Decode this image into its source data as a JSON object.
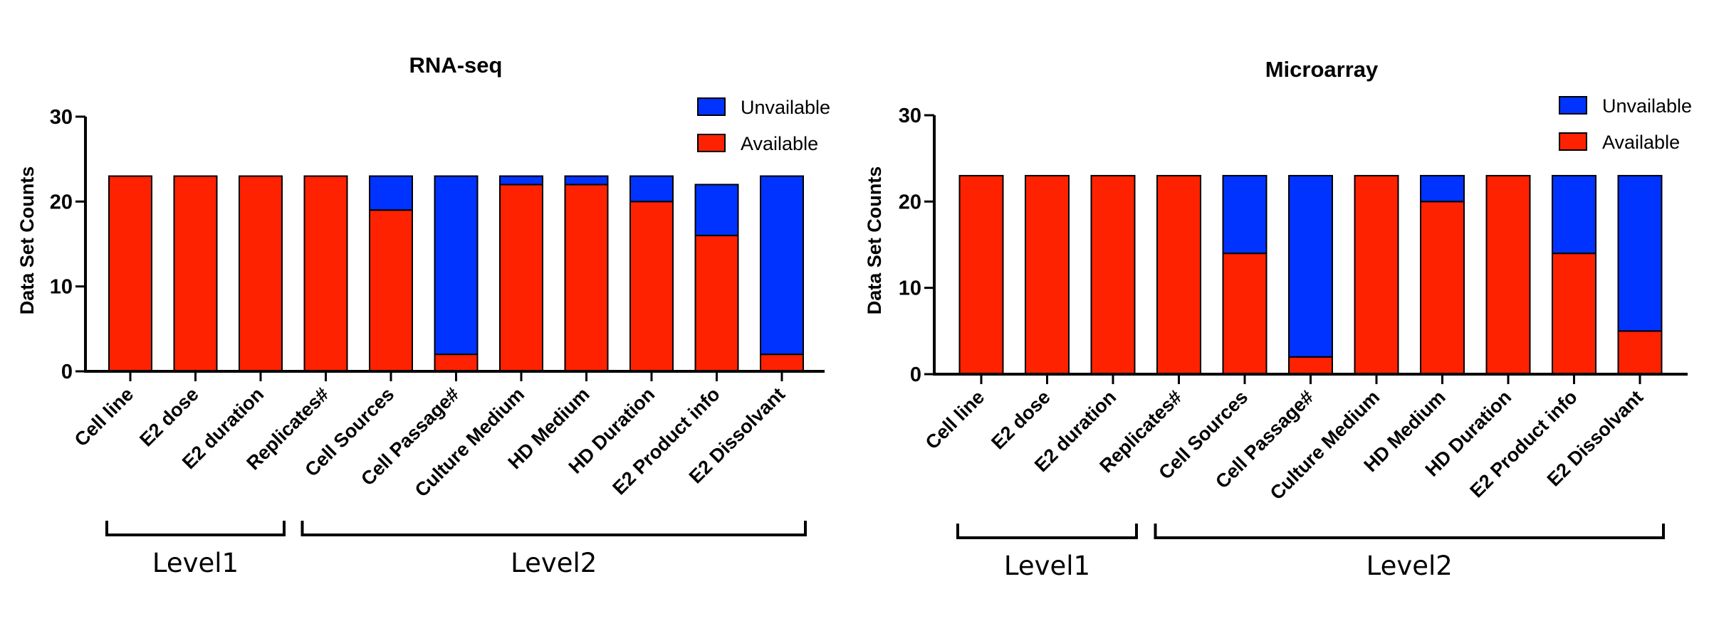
{
  "colors": {
    "available": "#ff2200",
    "unavailable": "#0033ff",
    "axis": "#000000"
  },
  "groups": [
    {
      "name": "Level1",
      "from_index": 0,
      "to_index": 2
    },
    {
      "name": "Level2",
      "from_index": 3,
      "to_index": 10
    }
  ],
  "chart_data": [
    {
      "type": "bar",
      "stacked": true,
      "title": "RNA-seq",
      "ylabel": "Data Set Counts",
      "xlabel": "",
      "ylim": [
        0,
        30
      ],
      "yticks": [
        0,
        10,
        20,
        30
      ],
      "legend_placement": "top-right",
      "categories": [
        "Cell line",
        "E2 dose",
        "E2 duration",
        "Replicates#",
        "Cell Sources",
        "Cell Passage#",
        "Culture Medium",
        "HD Medium",
        "HD Duration",
        "E2 Product info",
        "E2 Dissolvant"
      ],
      "series": [
        {
          "name": "Available",
          "values": [
            23,
            23,
            23,
            23,
            19,
            2,
            22,
            22,
            20,
            16,
            2
          ]
        },
        {
          "name": "Unvailable",
          "values": [
            0,
            0,
            0,
            0,
            4,
            21,
            1,
            1,
            3,
            6,
            21
          ]
        }
      ]
    },
    {
      "type": "bar",
      "stacked": true,
      "title": "Microarray",
      "ylabel": "Data Set Counts",
      "xlabel": "",
      "ylim": [
        0,
        30
      ],
      "yticks": [
        0,
        10,
        20,
        30
      ],
      "legend_placement": "top-right",
      "categories": [
        "Cell line",
        "E2 dose",
        "E2 duration",
        "Replicates#",
        "Cell Sources",
        "Cell Passage#",
        "Culture Medium",
        "HD Medium",
        "HD Duration",
        "E2 Product info",
        "E2 Dissolvant"
      ],
      "series": [
        {
          "name": "Available",
          "values": [
            23,
            23,
            23,
            23,
            14,
            2,
            23,
            20,
            23,
            14,
            5
          ]
        },
        {
          "name": "Unvailable",
          "values": [
            0,
            0,
            0,
            0,
            9,
            21,
            0,
            3,
            0,
            9,
            18
          ]
        }
      ]
    }
  ]
}
